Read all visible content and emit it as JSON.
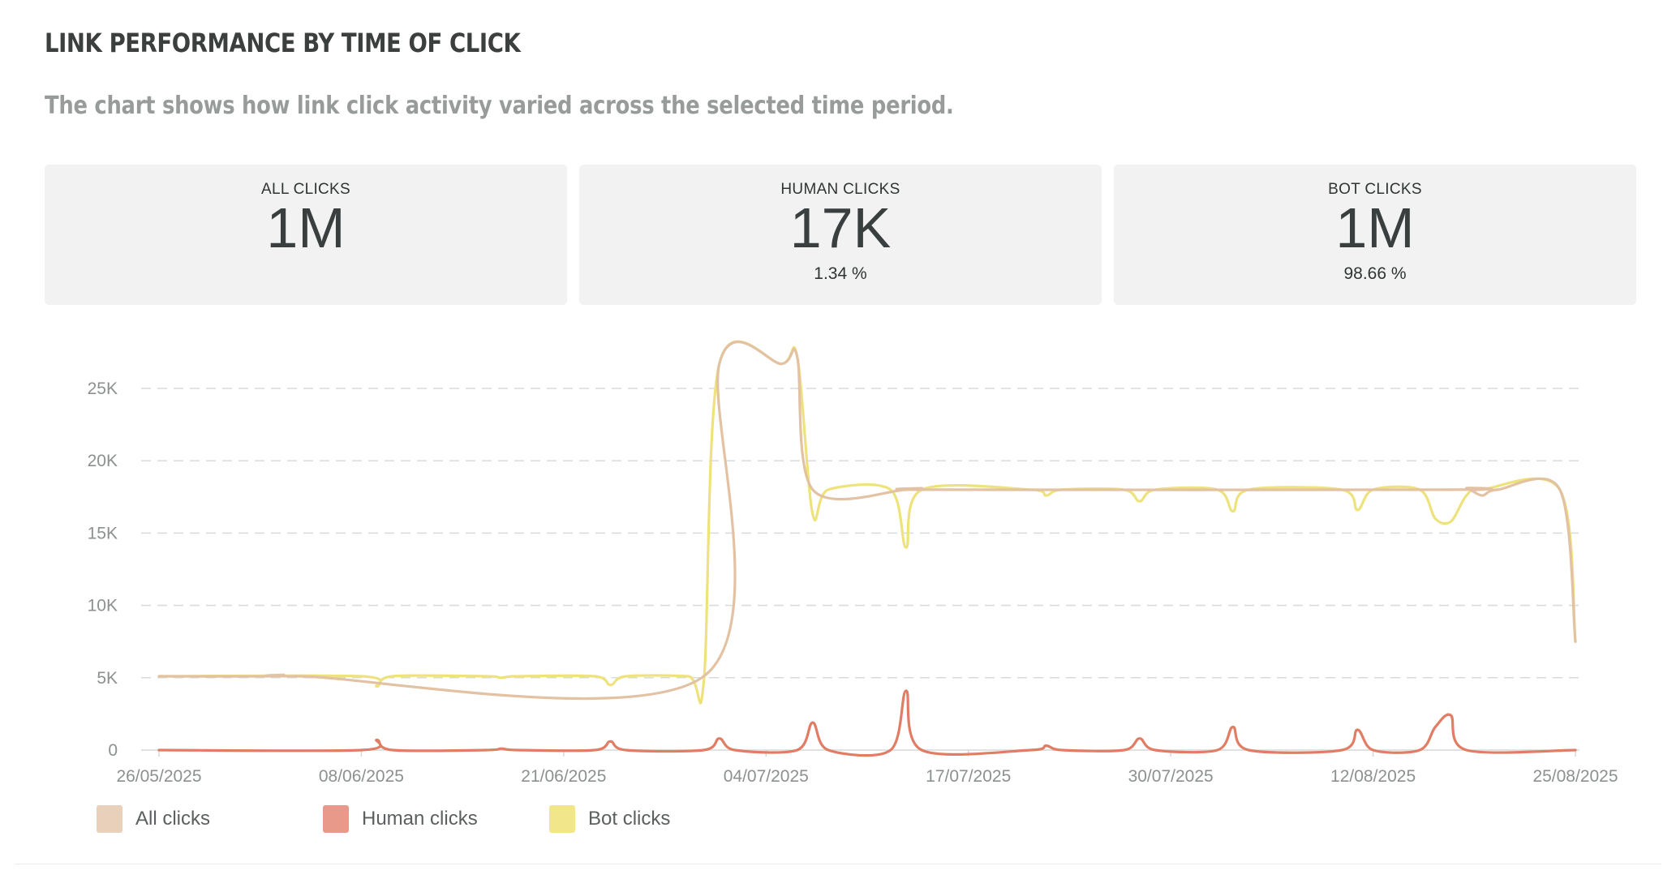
{
  "header": {
    "title": "LINK PERFORMANCE BY TIME OF CLICK",
    "subtitle": "The chart shows how link click activity varied across the selected time period."
  },
  "stats": [
    {
      "label": "ALL CLICKS",
      "value": "1M",
      "pct": ""
    },
    {
      "label": "HUMAN CLICKS",
      "value": "17K",
      "pct": "1.34 %"
    },
    {
      "label": "BOT CLICKS",
      "value": "1M",
      "pct": "98.66 %"
    }
  ],
  "legend": [
    {
      "label": "All clicks",
      "color": "#e8d0bb"
    },
    {
      "label": "Human clicks",
      "color": "#e9998a"
    },
    {
      "label": "Bot clicks",
      "color": "#f1e68a"
    }
  ],
  "chart_data": {
    "type": "line",
    "title": "",
    "xlabel": "",
    "ylabel": "",
    "x_start": "2025-05-26",
    "x_end": "2025-08-25",
    "x_tick_labels": [
      "26/05/2025",
      "08/06/2025",
      "21/06/2025",
      "04/07/2025",
      "17/07/2025",
      "30/07/2025",
      "12/08/2025",
      "25/08/2025"
    ],
    "y_ticks": [
      0,
      5000,
      10000,
      15000,
      20000,
      25000
    ],
    "y_tick_labels": [
      "0",
      "5K",
      "10K",
      "15K",
      "20K",
      "25K"
    ],
    "ylim": [
      0,
      25000
    ],
    "grid": true,
    "legend_position": "bottom-left",
    "series": [
      {
        "name": "All clicks",
        "color": "#e2c2a2",
        "points": [
          [
            "2025-05-26",
            5100
          ],
          [
            "2025-06-02",
            5100
          ],
          [
            "2025-06-03",
            5200
          ],
          [
            "2025-06-04",
            5100
          ],
          [
            "2025-06-30",
            5100
          ],
          [
            "2025-07-01",
            26700
          ],
          [
            "2025-07-05",
            26700
          ],
          [
            "2025-07-06",
            27200
          ],
          [
            "2025-07-07",
            18000
          ],
          [
            "2025-07-13",
            18000
          ],
          [
            "2025-07-14",
            18100
          ],
          [
            "2025-07-15",
            18000
          ],
          [
            "2025-08-17",
            18000
          ],
          [
            "2025-08-18",
            18100
          ],
          [
            "2025-08-19",
            17600
          ],
          [
            "2025-08-20",
            18000
          ],
          [
            "2025-08-24",
            18000
          ],
          [
            "2025-08-25",
            7500
          ]
        ]
      },
      {
        "name": "Human clicks",
        "color": "#e07d64",
        "points": [
          [
            "2025-05-26",
            0
          ],
          [
            "2025-06-08",
            0
          ],
          [
            "2025-06-09",
            700
          ],
          [
            "2025-06-10",
            0
          ],
          [
            "2025-06-16",
            0
          ],
          [
            "2025-06-17",
            100
          ],
          [
            "2025-06-18",
            0
          ],
          [
            "2025-06-23",
            0
          ],
          [
            "2025-06-24",
            600
          ],
          [
            "2025-06-25",
            0
          ],
          [
            "2025-06-30",
            0
          ],
          [
            "2025-07-01",
            800
          ],
          [
            "2025-07-02",
            0
          ],
          [
            "2025-07-06",
            0
          ],
          [
            "2025-07-07",
            1900
          ],
          [
            "2025-07-08",
            0
          ],
          [
            "2025-07-12",
            0
          ],
          [
            "2025-07-13",
            4100
          ],
          [
            "2025-07-14",
            0
          ],
          [
            "2025-07-21",
            0
          ],
          [
            "2025-07-22",
            300
          ],
          [
            "2025-07-23",
            0
          ],
          [
            "2025-07-27",
            0
          ],
          [
            "2025-07-28",
            800
          ],
          [
            "2025-07-29",
            0
          ],
          [
            "2025-08-02",
            0
          ],
          [
            "2025-08-03",
            1600
          ],
          [
            "2025-08-04",
            0
          ],
          [
            "2025-08-10",
            0
          ],
          [
            "2025-08-11",
            1400
          ],
          [
            "2025-08-12",
            0
          ],
          [
            "2025-08-15",
            0
          ],
          [
            "2025-08-16",
            1600
          ],
          [
            "2025-08-17",
            2400
          ],
          [
            "2025-08-18",
            0
          ],
          [
            "2025-08-25",
            0
          ]
        ]
      },
      {
        "name": "Bot clicks",
        "color": "#ede27c",
        "points": [
          [
            "2025-05-26",
            5100
          ],
          [
            "2025-06-08",
            5100
          ],
          [
            "2025-06-09",
            4400
          ],
          [
            "2025-06-10",
            5100
          ],
          [
            "2025-06-16",
            5100
          ],
          [
            "2025-06-17",
            5000
          ],
          [
            "2025-06-18",
            5100
          ],
          [
            "2025-06-23",
            5100
          ],
          [
            "2025-06-24",
            4500
          ],
          [
            "2025-06-25",
            5100
          ],
          [
            "2025-06-29",
            5100
          ],
          [
            "2025-06-30",
            4700
          ],
          [
            "2025-07-01",
            26700
          ],
          [
            "2025-07-05",
            26700
          ],
          [
            "2025-07-06",
            27200
          ],
          [
            "2025-07-07",
            16300
          ],
          [
            "2025-07-08",
            18000
          ],
          [
            "2025-07-12",
            18000
          ],
          [
            "2025-07-13",
            14000
          ],
          [
            "2025-07-14",
            18000
          ],
          [
            "2025-07-21",
            18000
          ],
          [
            "2025-07-22",
            17600
          ],
          [
            "2025-07-23",
            18000
          ],
          [
            "2025-07-27",
            18000
          ],
          [
            "2025-07-28",
            17200
          ],
          [
            "2025-07-29",
            18000
          ],
          [
            "2025-08-02",
            18000
          ],
          [
            "2025-08-03",
            16500
          ],
          [
            "2025-08-04",
            18000
          ],
          [
            "2025-08-10",
            18000
          ],
          [
            "2025-08-11",
            16600
          ],
          [
            "2025-08-12",
            18000
          ],
          [
            "2025-08-15",
            18000
          ],
          [
            "2025-08-16",
            16000
          ],
          [
            "2025-08-17",
            15800
          ],
          [
            "2025-08-18",
            17600
          ],
          [
            "2025-08-19",
            18000
          ],
          [
            "2025-08-24",
            18000
          ],
          [
            "2025-08-25",
            7500
          ]
        ]
      }
    ]
  }
}
